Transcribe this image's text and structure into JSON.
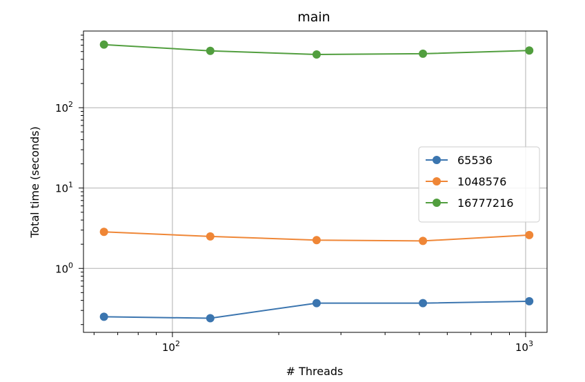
{
  "chart_data": {
    "type": "line",
    "title": "main",
    "xlabel": "# Threads",
    "ylabel": "Total time (seconds)",
    "xscale": "log",
    "yscale": "log",
    "xlim": [
      56,
      1150
    ],
    "ylim": [
      0.16,
      900
    ],
    "x": [
      64,
      128,
      256,
      512,
      1024
    ],
    "grid": true,
    "legend": "center-right",
    "x_ticks": [
      {
        "base": "10",
        "exp": "2",
        "value": 100
      },
      {
        "base": "10",
        "exp": "3",
        "value": 1000
      }
    ],
    "y_ticks": [
      {
        "base": "10",
        "exp": "0",
        "value": 1
      },
      {
        "base": "10",
        "exp": "1",
        "value": 10
      },
      {
        "base": "10",
        "exp": "2",
        "value": 100
      }
    ],
    "series": [
      {
        "name": "65536",
        "color": "#3b75af",
        "values": [
          0.25,
          0.24,
          0.37,
          0.37,
          0.39
        ]
      },
      {
        "name": "1048576",
        "color": "#ef8636",
        "values": [
          2.85,
          2.5,
          2.25,
          2.2,
          2.6
        ]
      },
      {
        "name": "16777216",
        "color": "#519e3e",
        "values": [
          610,
          510,
          460,
          470,
          515
        ]
      }
    ]
  }
}
